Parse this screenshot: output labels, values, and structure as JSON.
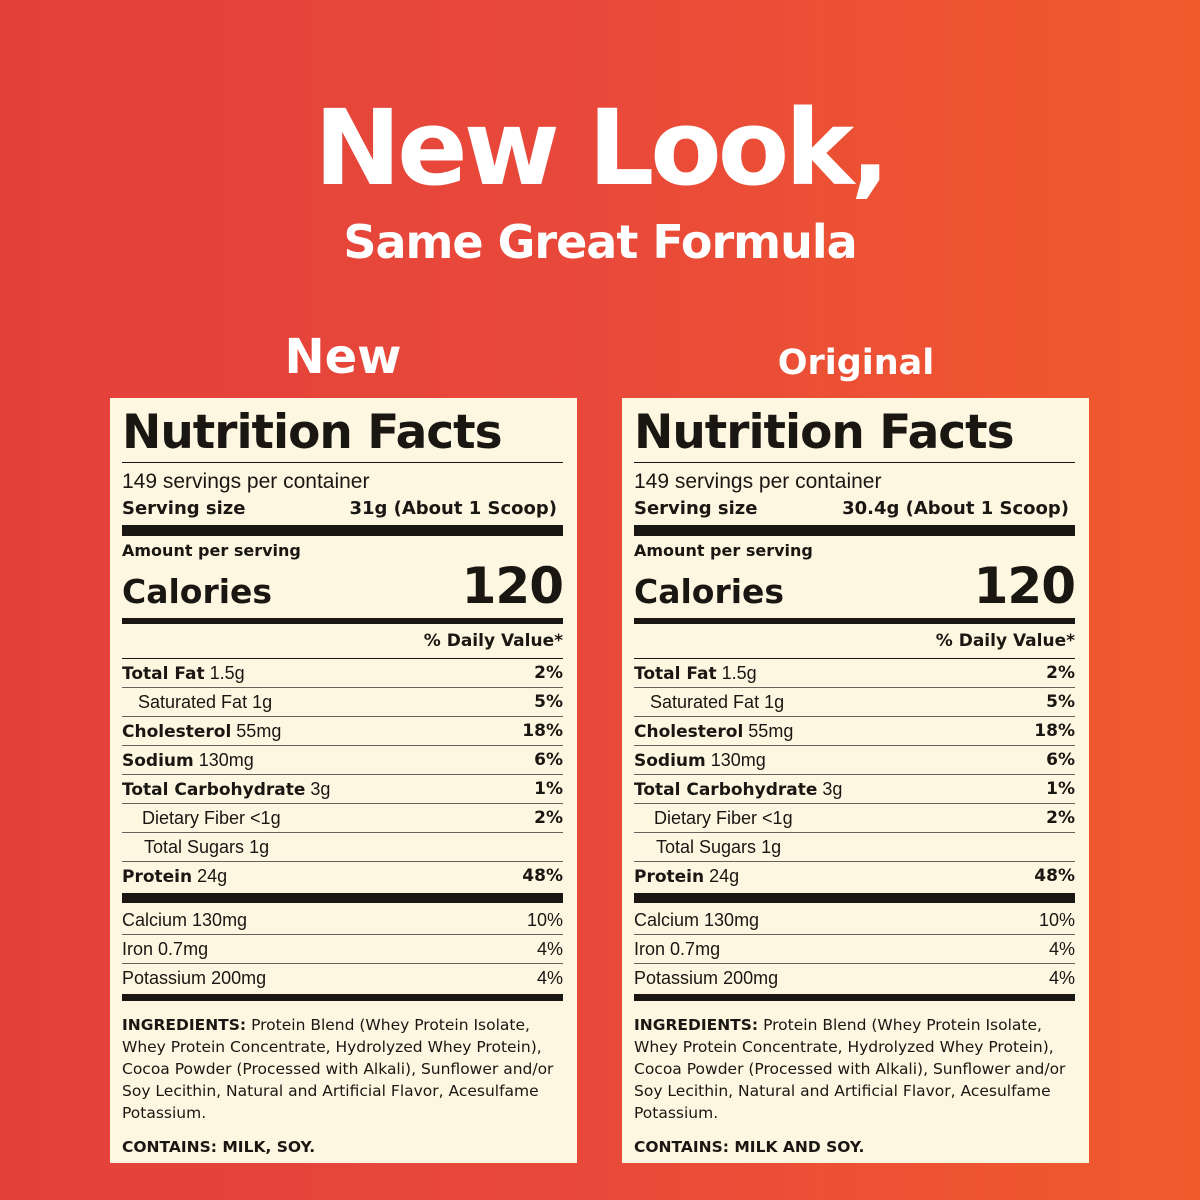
{
  "headline": "New Look,",
  "subheadline": "Same Great Formula",
  "colors": {
    "background_left": "#e3403a",
    "background_right": "#f05b2c",
    "panel": "#fdf7e2",
    "text": "#1a1612"
  },
  "labels": [
    {
      "heading": "New",
      "title": "Nutrition Facts",
      "servings": "149 servings per container",
      "serving_size_label": "Serving size",
      "serving_size": "31g (About 1 Scoop)",
      "amount_per_serving": "Amount per serving",
      "calories_label": "Calories",
      "calories": "120",
      "dv_header": "% Daily Value*",
      "nutrients": [
        {
          "name": "Total Fat",
          "amount": "1.5g",
          "dv": "2%",
          "bold": true,
          "indent": 0
        },
        {
          "name": "Saturated Fat",
          "amount": "1g",
          "dv": "5%",
          "bold": false,
          "indent": 1
        },
        {
          "name": "Cholesterol",
          "amount": "55mg",
          "dv": "18%",
          "bold": true,
          "indent": 0
        },
        {
          "name": "Sodium",
          "amount": "130mg",
          "dv": "6%",
          "bold": true,
          "indent": 0
        },
        {
          "name": "Total Carbohydrate",
          "amount": "3g",
          "dv": "1%",
          "bold": true,
          "indent": 0
        },
        {
          "name": "Dietary Fiber",
          "amount": "<1g",
          "dv": "2%",
          "bold": false,
          "indent": 1
        },
        {
          "name": "Total Sugars",
          "amount": "1g",
          "dv": "",
          "bold": false,
          "indent": 1
        },
        {
          "name": "Protein",
          "amount": "24g",
          "dv": "48%",
          "bold": true,
          "indent": 0
        }
      ],
      "minerals": [
        {
          "name": "Calcium",
          "amount": "130mg",
          "dv": "10%"
        },
        {
          "name": "Iron",
          "amount": "0.7mg",
          "dv": "4%"
        },
        {
          "name": "Potassium",
          "amount": "200mg",
          "dv": "4%"
        }
      ],
      "ingredients_label": "INGREDIENTS:",
      "ingredients": "Protein Blend (Whey Protein Isolate, Whey Protein Concentrate, Hydrolyzed Whey Protein), Cocoa Powder (Processed with Alkali), Sunflower and/or Soy Lecithin, Natural and Artificial Flavor, Acesulfame Potassium.",
      "contains": "CONTAINS: MILK, SOY."
    },
    {
      "heading": "Original",
      "title": "Nutrition Facts",
      "servings": "149 servings per container",
      "serving_size_label": "Serving size",
      "serving_size": "30.4g (About 1 Scoop)",
      "amount_per_serving": "Amount per serving",
      "calories_label": "Calories",
      "calories": "120",
      "dv_header": "% Daily Value*",
      "nutrients": [
        {
          "name": "Total Fat",
          "amount": "1.5g",
          "dv": "2%",
          "bold": true,
          "indent": 0
        },
        {
          "name": "Saturated Fat",
          "amount": "1g",
          "dv": "5%",
          "bold": false,
          "indent": 1
        },
        {
          "name": "Cholesterol",
          "amount": "55mg",
          "dv": "18%",
          "bold": true,
          "indent": 0
        },
        {
          "name": "Sodium",
          "amount": "130mg",
          "dv": "6%",
          "bold": true,
          "indent": 0
        },
        {
          "name": "Total Carbohydrate",
          "amount": "3g",
          "dv": "1%",
          "bold": true,
          "indent": 0
        },
        {
          "name": "Dietary Fiber",
          "amount": "<1g",
          "dv": "2%",
          "bold": false,
          "indent": 1
        },
        {
          "name": "Total Sugars",
          "amount": "1g",
          "dv": "",
          "bold": false,
          "indent": 1
        },
        {
          "name": "Protein",
          "amount": "24g",
          "dv": "48%",
          "bold": true,
          "indent": 0
        }
      ],
      "minerals": [
        {
          "name": "Calcium",
          "amount": "130mg",
          "dv": "10%"
        },
        {
          "name": "Iron",
          "amount": "0.7mg",
          "dv": "4%"
        },
        {
          "name": "Potassium",
          "amount": "200mg",
          "dv": "4%"
        }
      ],
      "ingredients_label": "INGREDIENTS:",
      "ingredients": "Protein Blend (Whey Protein Isolate, Whey Protein Concentrate, Hydrolyzed Whey Protein), Cocoa Powder (Processed with Alkali), Sunflower and/or Soy Lecithin, Natural and Artificial Flavor, Acesulfame Potassium.",
      "contains": "CONTAINS: MILK AND SOY."
    }
  ]
}
